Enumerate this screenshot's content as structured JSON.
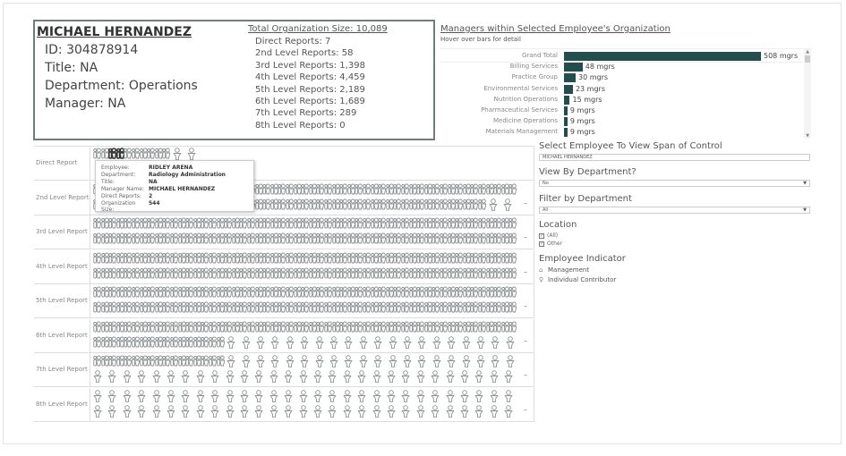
{
  "employee": {
    "name": "MICHAEL HERNANDEZ",
    "id": "ID: 304878914",
    "title": "Title: NA",
    "department": "Department: Operations",
    "manager": "Manager: NA"
  },
  "org": {
    "total": "Total Organization Size: 10,089",
    "levels": [
      "Direct Reports: 7",
      "2nd Level Reports: 58",
      "3rd Level Reports: 1,398",
      "4th Level Reports: 4,459",
      "5th Level Reports: 2,189",
      "6th Level Reports: 1,689",
      "7th Level Reports: 289",
      "8th Level Reports: 0"
    ]
  },
  "managers_chart": {
    "title": "Managers within Selected Employee's Organization",
    "subtitle": "Hover over bars for detail",
    "bar_color": "#234e4e",
    "unit": "mgrs",
    "rows": [
      {
        "label": "Grand Total",
        "value": 508,
        "text": "508 mgrs"
      },
      {
        "label": "Billing Services",
        "value": 48,
        "text": "48 mgrs"
      },
      {
        "label": "Practice Group",
        "value": 30,
        "text": "30 mgrs"
      },
      {
        "label": "Environmental Services",
        "value": 23,
        "text": "23 mgrs"
      },
      {
        "label": "Nutrition Operations",
        "value": 15,
        "text": "15 mgrs"
      },
      {
        "label": "Pharmaceutical Services",
        "value": 9,
        "text": "9 mgrs"
      },
      {
        "label": "Medicine Operations",
        "value": 9,
        "text": "9 mgrs"
      },
      {
        "label": "Materials Management",
        "value": 9,
        "text": "9 mgrs"
      }
    ]
  },
  "levels": [
    {
      "label": "Direct Report",
      "lines": [
        {
          "mgr": 10,
          "ic": 2
        }
      ],
      "more": false
    },
    {
      "label": "2nd Level Report",
      "lines": [
        {
          "mgr": 55,
          "ic": 0
        },
        {
          "mgr": 51,
          "ic": 2
        }
      ],
      "more": true
    },
    {
      "label": "3rd Level Report",
      "lines": [
        {
          "mgr": 55,
          "ic": 0
        },
        {
          "mgr": 55,
          "ic": 0
        }
      ],
      "more": true
    },
    {
      "label": "4th Level Report",
      "lines": [
        {
          "mgr": 55,
          "ic": 0
        },
        {
          "mgr": 55,
          "ic": 0
        }
      ],
      "more": true
    },
    {
      "label": "5th Level Report",
      "lines": [
        {
          "mgr": 55,
          "ic": 0
        },
        {
          "mgr": 55,
          "ic": 0
        }
      ],
      "more": true
    },
    {
      "label": "6th Level Report",
      "lines": [
        {
          "mgr": 55,
          "ic": 0
        },
        {
          "mgr": 17,
          "ic": 20
        }
      ],
      "more": true
    },
    {
      "label": "7th Level Report",
      "lines": [
        {
          "mgr": 17,
          "ic": 20
        },
        {
          "mgr": 0,
          "ic": 29
        }
      ],
      "more": true
    },
    {
      "label": "8th Level Report",
      "lines": [
        {
          "mgr": 0,
          "ic": 29
        },
        {
          "mgr": 0,
          "ic": 29
        }
      ],
      "more": true
    }
  ],
  "more_marker": "–",
  "tooltip": {
    "rows": [
      {
        "k": "Employee:",
        "v": "RIDLEY ARENA"
      },
      {
        "k": "Department:",
        "v": "Radiology Administration"
      },
      {
        "k": "Title:",
        "v": "NA"
      },
      {
        "k": "Manager Name:",
        "v": "MICHAEL HERNANDEZ"
      },
      {
        "k": "Direct Reports:",
        "v": "2"
      },
      {
        "k": "Organization Size:",
        "v": "544"
      }
    ]
  },
  "filters": {
    "select_employee": {
      "label": "Select Employee To View Span of Control",
      "value": "MICHAEL HERNANDEZ"
    },
    "view_by_dept": {
      "label": "View By Department?",
      "value": "No"
    },
    "filter_dept": {
      "label": "Filter by Department",
      "value": "All"
    },
    "location": {
      "label": "Location",
      "options": [
        {
          "label": "(All)",
          "checked": true
        },
        {
          "label": "Other",
          "checked": true
        }
      ]
    },
    "indicator": {
      "label": "Employee Indicator",
      "items": [
        {
          "icon": "management-icon",
          "label": "Management"
        },
        {
          "icon": "individual-contributor-icon",
          "label": "Individual Contributor"
        }
      ]
    }
  }
}
